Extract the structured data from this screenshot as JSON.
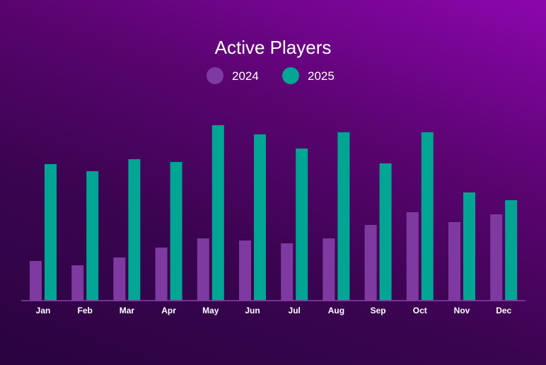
{
  "chart_data": {
    "type": "bar",
    "title": "Active Players",
    "categories": [
      "Jan",
      "Feb",
      "Mar",
      "Apr",
      "May",
      "Jun",
      "Jul",
      "Aug",
      "Sep",
      "Oct",
      "Nov",
      "Dec"
    ],
    "series": [
      {
        "name": "2024",
        "color": "#7e3aa0",
        "values": [
          56,
          50,
          61,
          75,
          88,
          85,
          81,
          88,
          107,
          125,
          111,
          122
        ]
      },
      {
        "name": "2025",
        "color": "#00a594",
        "values": [
          193,
          183,
          200,
          196,
          248,
          235,
          215,
          238,
          194,
          238,
          153,
          142
        ]
      }
    ],
    "ylim": [
      0,
      260
    ],
    "grid": false,
    "legend": "top-center",
    "xlabel": "",
    "ylabel": ""
  }
}
